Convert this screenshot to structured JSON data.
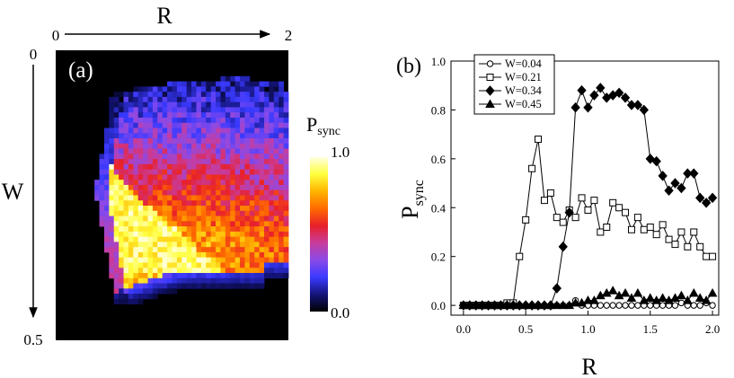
{
  "chart_data": [
    {
      "type": "heatmap",
      "panel_label": "(a)",
      "xlabel": "R",
      "ylabel": "W",
      "x_range": [
        0,
        2
      ],
      "y_range": [
        0,
        0.5
      ],
      "x_tick_labels": [
        "0",
        "2"
      ],
      "y_tick_labels": [
        "0",
        "0.5"
      ],
      "colorbar": {
        "label": "P",
        "label_sub": "sync",
        "range": [
          0.0,
          1.0
        ],
        "tick_labels": [
          "1.0",
          "0.0"
        ],
        "stops": [
          "#000000",
          "#14147a",
          "#3a3aff",
          "#8a4ae8",
          "#c83c9c",
          "#e8202a",
          "#ff6a00",
          "#ffb400",
          "#ffff3c",
          "#ffffe0"
        ]
      },
      "background_color": "#000000",
      "grid": {
        "cols": 48,
        "rows": 56
      }
    },
    {
      "type": "line",
      "panel_label": "(b)",
      "xlabel": "R",
      "ylabel": "P",
      "ylabel_sub": "sync",
      "xlim": [
        -0.1,
        2.05
      ],
      "ylim": [
        -0.04,
        1.0
      ],
      "x_ticks": [
        0.0,
        0.5,
        1.0,
        1.5,
        2.0
      ],
      "y_ticks": [
        0.0,
        0.2,
        0.4,
        0.6,
        0.8,
        1.0
      ],
      "x_tick_labels": [
        "0.0",
        "0.5",
        "1.0",
        "1.5",
        "2.0"
      ],
      "y_tick_labels": [
        "0.0",
        "0.2",
        "0.4",
        "0.6",
        "0.8",
        "1.0"
      ],
      "legend": "top-left",
      "series": [
        {
          "name": "W=0.04",
          "marker": "circle-open",
          "x": [
            0.0,
            0.05,
            0.1,
            0.15,
            0.2,
            0.25,
            0.3,
            0.35,
            0.4,
            0.45,
            0.5,
            0.55,
            0.6,
            0.65,
            0.7,
            0.75,
            0.8,
            0.85,
            0.9,
            0.95,
            1.0,
            1.05,
            1.1,
            1.15,
            1.2,
            1.25,
            1.3,
            1.35,
            1.4,
            1.45,
            1.5,
            1.55,
            1.6,
            1.65,
            1.7,
            1.75,
            1.8,
            1.85,
            1.9,
            1.95,
            2.0
          ],
          "y": [
            0,
            0,
            0,
            0,
            0,
            0,
            0,
            0,
            0,
            0,
            0,
            0,
            0,
            0,
            0,
            0,
            0,
            0,
            0.02,
            0,
            0,
            0,
            0,
            0,
            0,
            0,
            0,
            0,
            0,
            0,
            0,
            0,
            0,
            0,
            0,
            0.01,
            0,
            0,
            0,
            0.01,
            0
          ]
        },
        {
          "name": "W=0.21",
          "marker": "square-open",
          "x": [
            0.0,
            0.05,
            0.1,
            0.15,
            0.2,
            0.25,
            0.3,
            0.35,
            0.4,
            0.45,
            0.5,
            0.55,
            0.6,
            0.65,
            0.7,
            0.75,
            0.8,
            0.85,
            0.9,
            0.95,
            1.0,
            1.05,
            1.1,
            1.15,
            1.2,
            1.25,
            1.3,
            1.35,
            1.4,
            1.45,
            1.5,
            1.55,
            1.6,
            1.65,
            1.7,
            1.75,
            1.8,
            1.85,
            1.9,
            1.95,
            2.0
          ],
          "y": [
            0,
            0,
            0,
            0,
            0,
            0,
            0,
            0.01,
            0.01,
            0.2,
            0.35,
            0.56,
            0.68,
            0.43,
            0.46,
            0.36,
            0.34,
            0.39,
            0.36,
            0.44,
            0.39,
            0.43,
            0.3,
            0.32,
            0.42,
            0.4,
            0.38,
            0.31,
            0.36,
            0.31,
            0.32,
            0.29,
            0.33,
            0.27,
            0.25,
            0.3,
            0.24,
            0.3,
            0.24,
            0.2,
            0.2
          ]
        },
        {
          "name": "W=0.34",
          "marker": "diamond-filled",
          "x": [
            0.0,
            0.05,
            0.1,
            0.15,
            0.2,
            0.25,
            0.3,
            0.35,
            0.4,
            0.45,
            0.5,
            0.55,
            0.6,
            0.65,
            0.7,
            0.75,
            0.8,
            0.85,
            0.9,
            0.95,
            1.0,
            1.05,
            1.1,
            1.15,
            1.2,
            1.25,
            1.3,
            1.35,
            1.4,
            1.45,
            1.5,
            1.55,
            1.6,
            1.65,
            1.7,
            1.75,
            1.8,
            1.85,
            1.9,
            1.95,
            2.0
          ],
          "y": [
            0,
            0,
            0,
            0,
            0,
            0,
            0,
            0,
            0,
            0,
            0,
            0,
            0,
            0,
            0,
            0.07,
            0.24,
            0.38,
            0.81,
            0.88,
            0.81,
            0.86,
            0.89,
            0.85,
            0.86,
            0.87,
            0.85,
            0.82,
            0.82,
            0.8,
            0.6,
            0.59,
            0.53,
            0.47,
            0.5,
            0.48,
            0.54,
            0.54,
            0.44,
            0.42,
            0.44
          ]
        },
        {
          "name": "W=0.45",
          "marker": "triangle-filled",
          "x": [
            0.0,
            0.05,
            0.1,
            0.15,
            0.2,
            0.25,
            0.3,
            0.35,
            0.4,
            0.45,
            0.5,
            0.55,
            0.6,
            0.65,
            0.7,
            0.75,
            0.8,
            0.85,
            0.9,
            0.95,
            1.0,
            1.05,
            1.1,
            1.15,
            1.2,
            1.25,
            1.3,
            1.35,
            1.4,
            1.45,
            1.5,
            1.55,
            1.6,
            1.65,
            1.7,
            1.75,
            1.8,
            1.85,
            1.9,
            1.95,
            2.0
          ],
          "y": [
            0,
            0,
            0,
            0,
            0,
            0,
            0,
            0,
            0,
            0,
            0,
            0,
            0,
            0,
            0,
            0,
            0,
            0,
            0.01,
            0.01,
            0.02,
            0.02,
            0.04,
            0.05,
            0.06,
            0.04,
            0.05,
            0.03,
            0.05,
            0.02,
            0.03,
            0.02,
            0.03,
            0.02,
            0.03,
            0.04,
            0.02,
            0.05,
            0.03,
            0.02,
            0.05
          ]
        }
      ]
    }
  ]
}
